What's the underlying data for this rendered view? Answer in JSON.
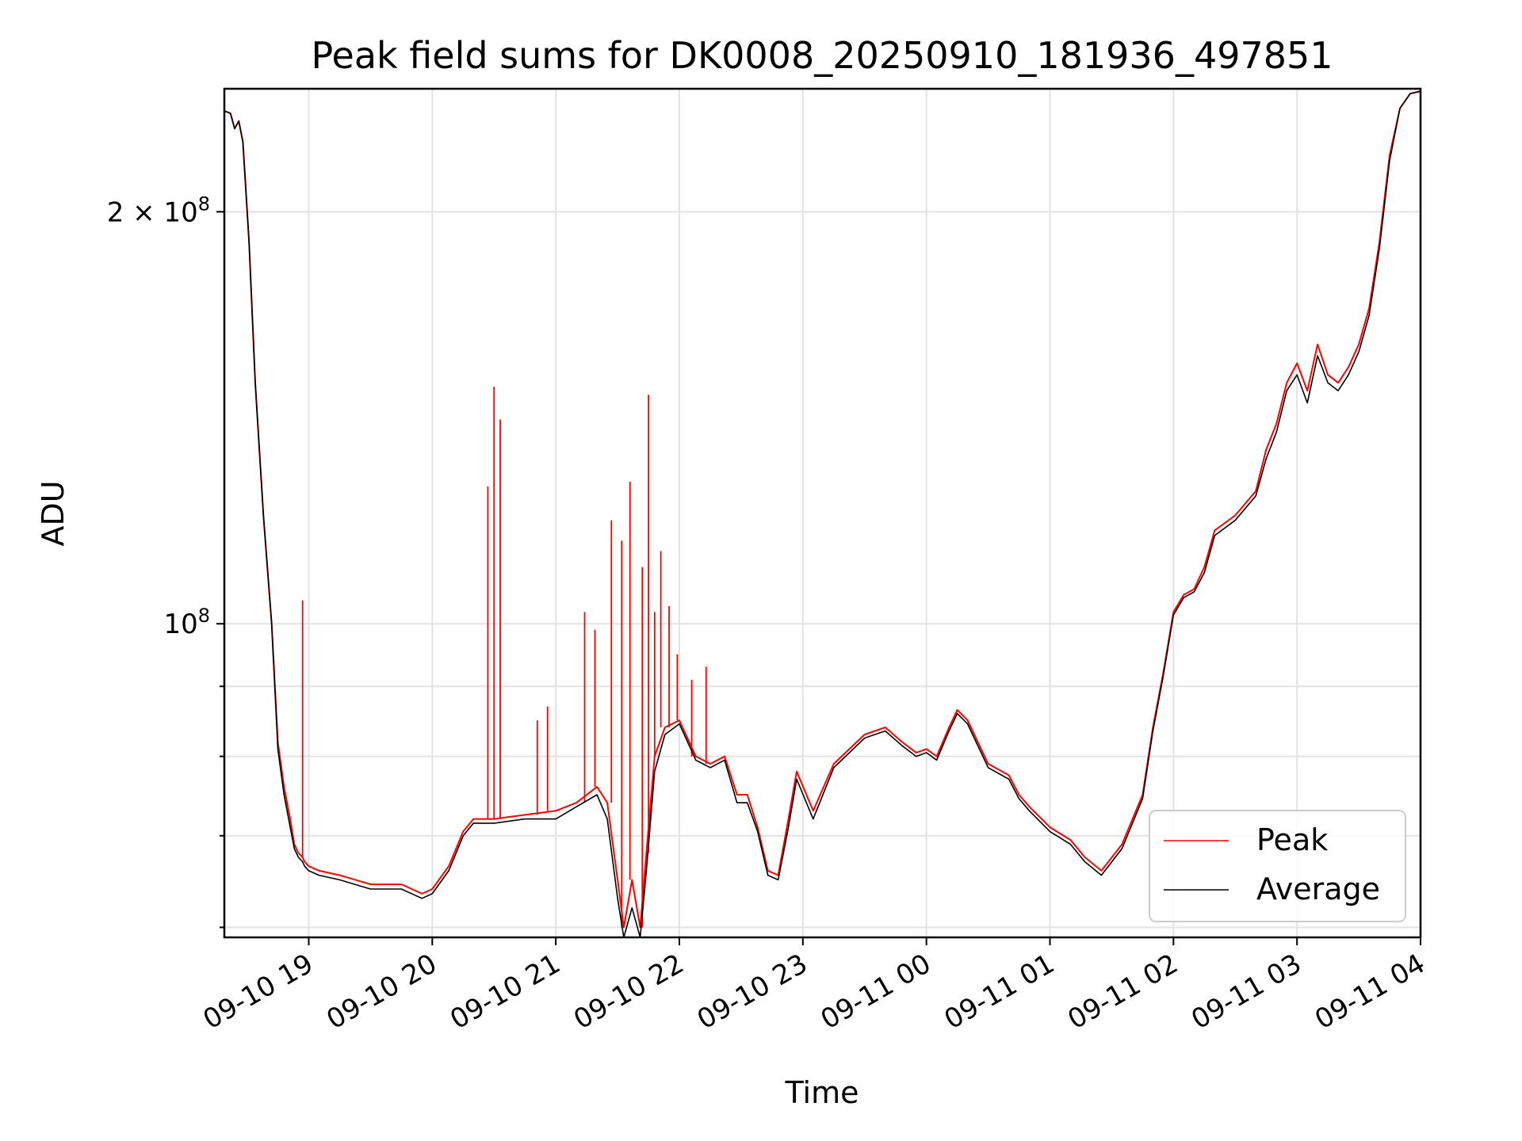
{
  "chart_data": {
    "type": "line",
    "title": "Peak field sums for DK0008_20250910_181936_497851",
    "xlabel": "Time",
    "ylabel": "ADU",
    "yscale": "log",
    "ylim": [
      59000000,
      246000000
    ],
    "xlim": [
      "2025-09-10 18:19",
      "2025-09-11 04:00"
    ],
    "xticks": [
      "09-10 19",
      "09-10 20",
      "09-10 21",
      "09-10 22",
      "09-10 23",
      "09-11 00",
      "09-11 01",
      "09-11 02",
      "09-11 03",
      "09-11 04"
    ],
    "yticks_labeled": [
      {
        "value": 100000000,
        "base": "10",
        "exp": "8",
        "coef": ""
      },
      {
        "value": 200000000,
        "base": "10",
        "exp": "8",
        "coef": "2 × "
      }
    ],
    "yticks_minor": [
      60000000,
      70000000,
      80000000,
      90000000
    ],
    "grid": true,
    "legend_position": "lower-right",
    "series": [
      {
        "name": "Peak",
        "color": "#ff0000",
        "x": [
          "2025-09-10 18:19",
          "2025-09-10 18:22",
          "2025-09-10 18:24",
          "2025-09-10 18:26",
          "2025-09-10 18:28",
          "2025-09-10 18:31",
          "2025-09-10 18:34",
          "2025-09-10 18:38",
          "2025-09-10 18:42",
          "2025-09-10 18:45",
          "2025-09-10 18:48",
          "2025-09-10 18:51",
          "2025-09-10 18:53",
          "2025-09-10 18:55",
          "2025-09-10 18:57",
          "2025-09-10 18:58",
          "2025-09-10 19:00",
          "2025-09-10 19:05",
          "2025-09-10 19:15",
          "2025-09-10 19:30",
          "2025-09-10 19:45",
          "2025-09-10 19:55",
          "2025-09-10 20:00",
          "2025-09-10 20:08",
          "2025-09-10 20:15",
          "2025-09-10 20:20",
          "2025-09-10 20:30",
          "2025-09-10 20:45",
          "2025-09-10 21:00",
          "2025-09-10 21:10",
          "2025-09-10 21:20",
          "2025-09-10 21:25",
          "2025-09-10 21:30",
          "2025-09-10 21:33",
          "2025-09-10 21:37",
          "2025-09-10 21:41",
          "2025-09-10 21:44",
          "2025-09-10 21:48",
          "2025-09-10 21:53",
          "2025-09-10 22:00",
          "2025-09-10 22:08",
          "2025-09-10 22:15",
          "2025-09-10 22:22",
          "2025-09-10 22:28",
          "2025-09-10 22:33",
          "2025-09-10 22:38",
          "2025-09-10 22:43",
          "2025-09-10 22:48",
          "2025-09-10 22:53",
          "2025-09-10 22:57",
          "2025-09-10 23:05",
          "2025-09-10 23:15",
          "2025-09-10 23:30",
          "2025-09-10 23:40",
          "2025-09-10 23:48",
          "2025-09-10 23:55",
          "2025-09-11 00:00",
          "2025-09-11 00:05",
          "2025-09-11 00:11",
          "2025-09-11 00:15",
          "2025-09-11 00:20",
          "2025-09-11 00:30",
          "2025-09-11 00:40",
          "2025-09-11 00:45",
          "2025-09-11 00:50",
          "2025-09-11 01:00",
          "2025-09-11 01:10",
          "2025-09-11 01:17",
          "2025-09-11 01:25",
          "2025-09-11 01:35",
          "2025-09-11 01:45",
          "2025-09-11 01:50",
          "2025-09-11 01:55",
          "2025-09-11 02:00",
          "2025-09-11 02:05",
          "2025-09-11 02:10",
          "2025-09-11 02:15",
          "2025-09-11 02:20",
          "2025-09-11 02:30",
          "2025-09-11 02:40",
          "2025-09-11 02:45",
          "2025-09-11 02:50",
          "2025-09-11 02:55",
          "2025-09-11 03:00",
          "2025-09-11 03:05",
          "2025-09-11 03:10",
          "2025-09-11 03:15",
          "2025-09-11 03:20",
          "2025-09-11 03:25",
          "2025-09-11 03:30",
          "2025-09-11 03:35",
          "2025-09-11 03:40",
          "2025-09-11 03:45",
          "2025-09-11 03:50",
          "2025-09-11 03:55",
          "2025-09-11 04:00"
        ],
        "values": [
          237000000,
          236000000,
          230000000,
          233000000,
          225000000,
          190000000,
          150000000,
          120000000,
          100000000,
          82000000,
          76000000,
          72000000,
          69000000,
          68000000,
          67500000,
          67000000,
          66500000,
          66000000,
          65500000,
          64500000,
          64500000,
          63500000,
          64000000,
          66500000,
          70500000,
          72000000,
          72000000,
          72500000,
          73000000,
          74000000,
          76000000,
          74000000,
          65000000,
          60000000,
          65000000,
          60000000,
          68000000,
          80000000,
          84000000,
          85000000,
          80000000,
          79000000,
          80000000,
          75000000,
          75000000,
          71000000,
          66000000,
          65500000,
          72000000,
          78000000,
          73000000,
          79000000,
          83000000,
          84000000,
          82000000,
          80500000,
          81000000,
          80000000,
          84000000,
          86500000,
          85000000,
          79000000,
          77500000,
          75000000,
          73500000,
          71000000,
          69500000,
          67500000,
          66000000,
          69000000,
          75000000,
          84000000,
          92000000,
          102000000,
          105000000,
          106000000,
          110000000,
          117000000,
          120000000,
          125000000,
          134000000,
          140000000,
          150000000,
          155000000,
          148000000,
          160000000,
          152000000,
          150000000,
          154000000,
          160000000,
          170000000,
          190000000,
          220000000,
          238000000,
          244000000,
          245000000
        ]
      },
      {
        "name": "Average",
        "color": "#000000",
        "x": [
          "2025-09-10 18:19",
          "2025-09-10 18:22",
          "2025-09-10 18:24",
          "2025-09-10 18:26",
          "2025-09-10 18:28",
          "2025-09-10 18:31",
          "2025-09-10 18:34",
          "2025-09-10 18:38",
          "2025-09-10 18:42",
          "2025-09-10 18:45",
          "2025-09-10 18:48",
          "2025-09-10 18:51",
          "2025-09-10 18:53",
          "2025-09-10 18:55",
          "2025-09-10 18:57",
          "2025-09-10 18:58",
          "2025-09-10 19:00",
          "2025-09-10 19:05",
          "2025-09-10 19:15",
          "2025-09-10 19:30",
          "2025-09-10 19:45",
          "2025-09-10 19:55",
          "2025-09-10 20:00",
          "2025-09-10 20:08",
          "2025-09-10 20:15",
          "2025-09-10 20:20",
          "2025-09-10 20:30",
          "2025-09-10 20:45",
          "2025-09-10 21:00",
          "2025-09-10 21:10",
          "2025-09-10 21:20",
          "2025-09-10 21:25",
          "2025-09-10 21:30",
          "2025-09-10 21:33",
          "2025-09-10 21:37",
          "2025-09-10 21:41",
          "2025-09-10 21:44",
          "2025-09-10 21:48",
          "2025-09-10 21:53",
          "2025-09-10 22:00",
          "2025-09-10 22:08",
          "2025-09-10 22:15",
          "2025-09-10 22:22",
          "2025-09-10 22:28",
          "2025-09-10 22:33",
          "2025-09-10 22:38",
          "2025-09-10 22:43",
          "2025-09-10 22:48",
          "2025-09-10 22:53",
          "2025-09-10 22:57",
          "2025-09-10 23:05",
          "2025-09-10 23:15",
          "2025-09-10 23:30",
          "2025-09-10 23:40",
          "2025-09-10 23:48",
          "2025-09-10 23:55",
          "2025-09-11 00:00",
          "2025-09-11 00:05",
          "2025-09-11 00:11",
          "2025-09-11 00:15",
          "2025-09-11 00:20",
          "2025-09-11 00:30",
          "2025-09-11 00:40",
          "2025-09-11 00:45",
          "2025-09-11 00:50",
          "2025-09-11 01:00",
          "2025-09-11 01:10",
          "2025-09-11 01:17",
          "2025-09-11 01:25",
          "2025-09-11 01:35",
          "2025-09-11 01:45",
          "2025-09-11 01:50",
          "2025-09-11 01:55",
          "2025-09-11 02:00",
          "2025-09-11 02:05",
          "2025-09-11 02:10",
          "2025-09-11 02:15",
          "2025-09-11 02:20",
          "2025-09-11 02:30",
          "2025-09-11 02:40",
          "2025-09-11 02:45",
          "2025-09-11 02:50",
          "2025-09-11 02:55",
          "2025-09-11 03:00",
          "2025-09-11 03:05",
          "2025-09-11 03:10",
          "2025-09-11 03:15",
          "2025-09-11 03:20",
          "2025-09-11 03:25",
          "2025-09-11 03:30",
          "2025-09-11 03:35",
          "2025-09-11 03:40",
          "2025-09-11 03:45",
          "2025-09-11 03:50",
          "2025-09-11 03:55",
          "2025-09-11 04:00"
        ],
        "values": [
          237000000,
          236000000,
          230000000,
          233000000,
          225000000,
          190000000,
          150000000,
          120000000,
          100000000,
          81000000,
          75000000,
          71000000,
          68500000,
          67500000,
          67000000,
          66500000,
          66000000,
          65500000,
          65000000,
          64000000,
          64000000,
          63000000,
          63500000,
          66000000,
          70000000,
          71500000,
          71500000,
          72000000,
          72000000,
          73500000,
          75000000,
          72000000,
          63000000,
          59000000,
          62000000,
          59000000,
          66000000,
          78000000,
          83000000,
          84500000,
          79500000,
          78500000,
          79500000,
          74000000,
          74000000,
          70500000,
          65500000,
          65000000,
          71000000,
          77000000,
          72000000,
          78500000,
          82500000,
          83500000,
          81500000,
          80000000,
          80500000,
          79500000,
          83500000,
          86000000,
          84500000,
          78500000,
          77000000,
          74500000,
          73000000,
          70500000,
          69000000,
          67000000,
          65500000,
          68500000,
          74500000,
          83500000,
          91500000,
          101500000,
          104500000,
          105500000,
          109000000,
          116000000,
          119000000,
          124000000,
          132000000,
          138000000,
          148000000,
          152000000,
          145000000,
          157000000,
          150000000,
          148000000,
          152000000,
          158000000,
          168000000,
          188000000,
          218000000,
          238000000,
          244000000,
          245000000
        ]
      }
    ],
    "peak_spikes": [
      {
        "x": "2025-09-10 18:57",
        "value": 104000000
      },
      {
        "x": "2025-09-10 20:27",
        "value": 126000000
      },
      {
        "x": "2025-09-10 20:30",
        "value": 149000000
      },
      {
        "x": "2025-09-10 20:33",
        "value": 141000000
      },
      {
        "x": "2025-09-10 20:51",
        "value": 85000000
      },
      {
        "x": "2025-09-10 20:56",
        "value": 87000000
      },
      {
        "x": "2025-09-10 21:14",
        "value": 102000000
      },
      {
        "x": "2025-09-10 21:19",
        "value": 99000000
      },
      {
        "x": "2025-09-10 21:27",
        "value": 119000000
      },
      {
        "x": "2025-09-10 21:32",
        "value": 115000000
      },
      {
        "x": "2025-09-10 21:36",
        "value": 127000000
      },
      {
        "x": "2025-09-10 21:42",
        "value": 110000000
      },
      {
        "x": "2025-09-10 21:45",
        "value": 147000000
      },
      {
        "x": "2025-09-10 21:48",
        "value": 102000000
      },
      {
        "x": "2025-09-10 21:51",
        "value": 113000000
      },
      {
        "x": "2025-09-10 21:55",
        "value": 103000000
      },
      {
        "x": "2025-09-10 21:59",
        "value": 95000000
      },
      {
        "x": "2025-09-10 22:06",
        "value": 91000000
      },
      {
        "x": "2025-09-10 22:13",
        "value": 93000000
      }
    ],
    "legend": [
      "Peak",
      "Average"
    ]
  }
}
